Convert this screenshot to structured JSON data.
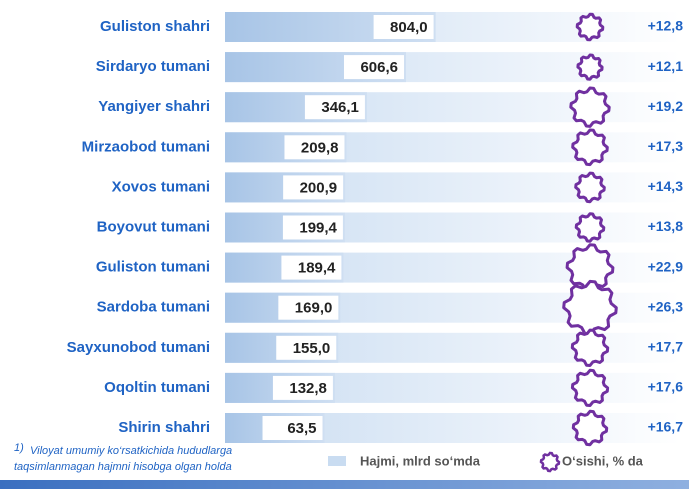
{
  "chart_data": {
    "type": "bar",
    "categories": [
      "Guliston shahri",
      "Sirdaryo tumani",
      "Yangiyer shahri",
      "Mirzaobod tumani",
      "Xovos tumani",
      "Boyovut tumani",
      "Guliston tumani",
      "Sardoba tumani",
      "Sayxunobod tumani",
      "Oqoltin tumani",
      "Shirin shahri"
    ],
    "series": [
      {
        "name": "Hajmi, mlrd so‘mda",
        "color": "#b9d3ee",
        "values": [
          804.0,
          606.6,
          346.1,
          209.8,
          200.9,
          199.4,
          189.4,
          169.0,
          155.0,
          132.8,
          63.5
        ],
        "value_labels": [
          "804,0",
          "606,6",
          "346,1",
          "209,8",
          "200,9",
          "199,4",
          "189,4",
          "169,0",
          "155,0",
          "132,8",
          "63,5"
        ]
      },
      {
        "name": "O‘sishi, % da",
        "color": "#7030a0",
        "values": [
          12.8,
          12.1,
          19.2,
          17.3,
          14.3,
          13.8,
          22.9,
          26.3,
          17.7,
          17.6,
          16.7
        ],
        "value_labels": [
          "+12,8",
          "+12,1",
          "+19,2",
          "+17,3",
          "+14,3",
          "+13,8",
          "+22,9",
          "+26,3",
          "+17,7",
          "+17,6",
          "+16,7"
        ]
      }
    ],
    "footnote_marker": "1)",
    "footnote": [
      "Viloyat umumiy ko‘rsatkichida hududlarga",
      "taqsimlanmagan hajmni hisobga olgan holda"
    ]
  }
}
